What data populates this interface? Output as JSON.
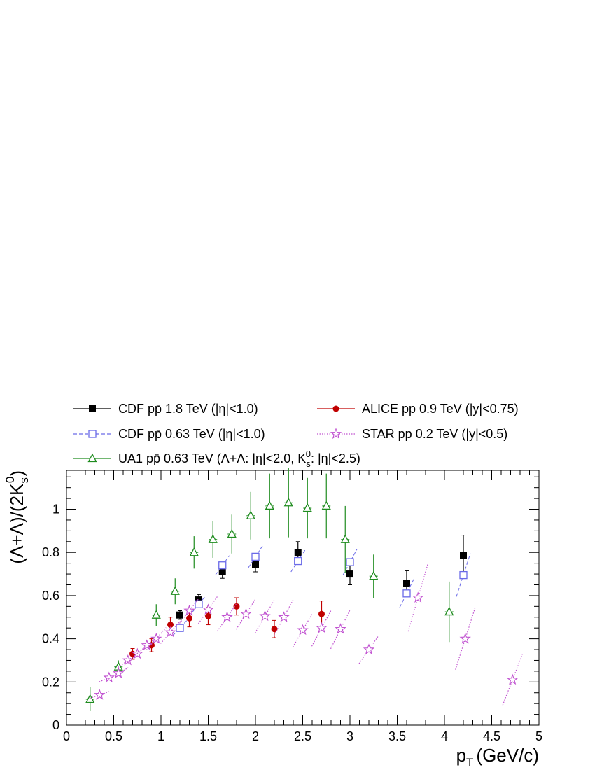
{
  "chart_data": {
    "type": "scatter",
    "title": "",
    "xlabel": "p",
    "xlabel_sub": "T",
    "xlabel_unit": "(GeV/c)",
    "ylabel": "(Λ+Λ)/(2K",
    "ylabel_sub": "s",
    "ylabel_sup": "0",
    "ylabel_close": ")",
    "xlim": [
      0,
      5
    ],
    "ylim": [
      0,
      1.18
    ],
    "x_ticks": [
      0,
      0.5,
      1,
      1.5,
      2,
      2.5,
      3,
      3.5,
      4,
      4.5,
      5
    ],
    "x_tick_labels": [
      "0",
      "0.5",
      "1",
      "1.5",
      "2",
      "2.5",
      "3",
      "3.5",
      "4",
      "4.5",
      "5"
    ],
    "y_ticks": [
      0,
      0.2,
      0.4,
      0.6,
      0.8,
      1
    ],
    "y_tick_labels": [
      "0",
      "0.2",
      "0.4",
      "0.6",
      "0.8",
      "1"
    ],
    "grid": false,
    "legend_position": "top",
    "series": [
      {
        "name": "CDF pp̄ 1.8 TeV (|η|<1.0)",
        "color": "#000000",
        "marker": "filled-square",
        "points": [
          {
            "x": 1.2,
            "y": 0.51,
            "err": 0.02
          },
          {
            "x": 1.4,
            "y": 0.58,
            "err": 0.025
          },
          {
            "x": 1.65,
            "y": 0.71,
            "err": 0.03
          },
          {
            "x": 2.0,
            "y": 0.745,
            "err": 0.035
          },
          {
            "x": 2.45,
            "y": 0.8,
            "err": 0.05
          },
          {
            "x": 3.0,
            "y": 0.7,
            "err": 0.05
          },
          {
            "x": 3.6,
            "y": 0.655,
            "err": 0.06
          },
          {
            "x": 4.2,
            "y": 0.785,
            "err": 0.095
          }
        ]
      },
      {
        "name": "CDF pp̄ 0.63 TeV (|η|<1.0)",
        "color": "#6a6ae8",
        "marker": "open-square",
        "points": [
          {
            "x": 1.2,
            "y": 0.45,
            "sys": 0.035
          },
          {
            "x": 1.4,
            "y": 0.56,
            "sys": 0.04
          },
          {
            "x": 1.65,
            "y": 0.74,
            "sys": 0.045
          },
          {
            "x": 2.0,
            "y": 0.78,
            "sys": 0.05
          },
          {
            "x": 2.45,
            "y": 0.76,
            "sys": 0.05
          },
          {
            "x": 3.0,
            "y": 0.755,
            "sys": 0.06
          },
          {
            "x": 3.6,
            "y": 0.61,
            "sys": 0.065
          },
          {
            "x": 4.2,
            "y": 0.695,
            "sys": 0.1
          }
        ]
      },
      {
        "name": "UA1 pp̄ 0.63 TeV (Λ+Λ: |η|<2.0, K",
        "name_sub": "s",
        "name_sup": "0",
        "name_tail": ": |η|<2.5)",
        "color": "#1f8c1f",
        "marker": "open-triangle",
        "points": [
          {
            "x": 0.25,
            "y": 0.12,
            "err": 0.055
          },
          {
            "x": 0.55,
            "y": 0.27,
            "err": 0.03
          },
          {
            "x": 0.95,
            "y": 0.51,
            "err": 0.05
          },
          {
            "x": 1.15,
            "y": 0.62,
            "err": 0.06
          },
          {
            "x": 1.35,
            "y": 0.8,
            "err": 0.075
          },
          {
            "x": 1.55,
            "y": 0.86,
            "err": 0.085
          },
          {
            "x": 1.75,
            "y": 0.885,
            "err": 0.09
          },
          {
            "x": 1.95,
            "y": 0.97,
            "err": 0.11
          },
          {
            "x": 2.15,
            "y": 1.015,
            "err": 0.15
          },
          {
            "x": 2.35,
            "y": 1.03,
            "err": 0.16
          },
          {
            "x": 2.55,
            "y": 1.005,
            "err": 0.14
          },
          {
            "x": 2.75,
            "y": 1.015,
            "err": 0.15
          },
          {
            "x": 2.95,
            "y": 0.86,
            "err": 0.155
          },
          {
            "x": 3.25,
            "y": 0.69,
            "err": 0.1
          },
          {
            "x": 4.05,
            "y": 0.525,
            "err": 0.14
          }
        ]
      },
      {
        "name": "ALICE pp 0.9 TeV (|y|<0.75)",
        "color": "#c00000",
        "marker": "filled-circle",
        "points": [
          {
            "x": 0.7,
            "y": 0.33,
            "err": 0.025
          },
          {
            "x": 0.9,
            "y": 0.37,
            "err": 0.03
          },
          {
            "x": 1.1,
            "y": 0.465,
            "err": 0.035
          },
          {
            "x": 1.3,
            "y": 0.495,
            "err": 0.04
          },
          {
            "x": 1.5,
            "y": 0.505,
            "err": 0.04
          },
          {
            "x": 1.8,
            "y": 0.55,
            "err": 0.04
          },
          {
            "x": 2.2,
            "y": 0.445,
            "err": 0.04
          },
          {
            "x": 2.7,
            "y": 0.515,
            "err": 0.06
          }
        ]
      },
      {
        "name": "STAR pp 0.2 TeV (|y|<0.5)",
        "color": "#c050d0",
        "marker": "open-star",
        "points": [
          {
            "x": 0.35,
            "y": 0.14,
            "sys": 0.012
          },
          {
            "x": 0.45,
            "y": 0.22,
            "sys": 0.015
          },
          {
            "x": 0.55,
            "y": 0.24,
            "sys": 0.02
          },
          {
            "x": 0.65,
            "y": 0.3,
            "sys": 0.025
          },
          {
            "x": 0.75,
            "y": 0.33,
            "sys": 0.03
          },
          {
            "x": 0.85,
            "y": 0.37,
            "sys": 0.03
          },
          {
            "x": 0.95,
            "y": 0.4,
            "sys": 0.04
          },
          {
            "x": 1.1,
            "y": 0.43,
            "sys": 0.04
          },
          {
            "x": 1.3,
            "y": 0.53,
            "sys": 0.045
          },
          {
            "x": 1.5,
            "y": 0.535,
            "sys": 0.05
          },
          {
            "x": 1.7,
            "y": 0.5,
            "sys": 0.05
          },
          {
            "x": 1.9,
            "y": 0.515,
            "sys": 0.055
          },
          {
            "x": 2.1,
            "y": 0.505,
            "sys": 0.06
          },
          {
            "x": 2.3,
            "y": 0.5,
            "sys": 0.065
          },
          {
            "x": 2.5,
            "y": 0.44,
            "sys": 0.06
          },
          {
            "x": 2.7,
            "y": 0.45,
            "sys": 0.065
          },
          {
            "x": 2.9,
            "y": 0.445,
            "sys": 0.07
          },
          {
            "x": 3.2,
            "y": 0.35,
            "sys": 0.05
          },
          {
            "x": 3.72,
            "y": 0.59,
            "sys": 0.12
          },
          {
            "x": 4.22,
            "y": 0.4,
            "sys": 0.11
          },
          {
            "x": 4.72,
            "y": 0.21,
            "sys": 0.09
          }
        ]
      }
    ]
  }
}
